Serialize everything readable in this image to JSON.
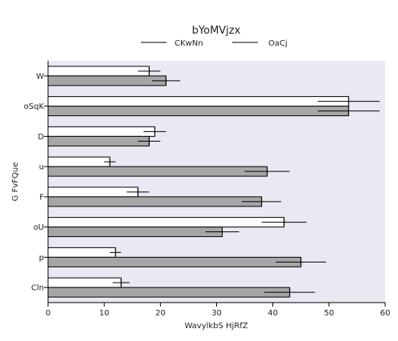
{
  "chart_data": {
    "type": "bar",
    "orientation": "horizontal",
    "title": "bYoMVjzx",
    "xlabel": "WavylkbS HjRfZ",
    "ylabel": "G FvFQue",
    "categories": [
      "W",
      "oSqK",
      "D",
      "u",
      "F",
      "oU",
      "p",
      "Cln"
    ],
    "xlim": [
      0,
      60
    ],
    "xticks": [
      "0",
      "10",
      "20",
      "30",
      "40",
      "50",
      "60"
    ],
    "grid": false,
    "legend_position": "top-center",
    "series": [
      {
        "name": "CKwNn",
        "color": "#ffffff",
        "values": [
          18,
          53.5,
          19,
          11,
          16,
          42,
          12,
          13
        ],
        "errors": [
          2,
          5.5,
          2,
          1,
          2,
          4,
          1,
          1.5
        ]
      },
      {
        "name": "OaCj",
        "color": "#a6a6a6",
        "values": [
          21,
          53.5,
          18,
          39,
          38,
          31,
          45,
          43
        ],
        "errors": [
          2.5,
          5.5,
          2,
          4,
          3.5,
          3,
          4.5,
          4.5
        ]
      }
    ],
    "colors": {
      "plot_background": "#e9e9f3",
      "bar_edge": "#000000",
      "axis": "#000000"
    }
  }
}
